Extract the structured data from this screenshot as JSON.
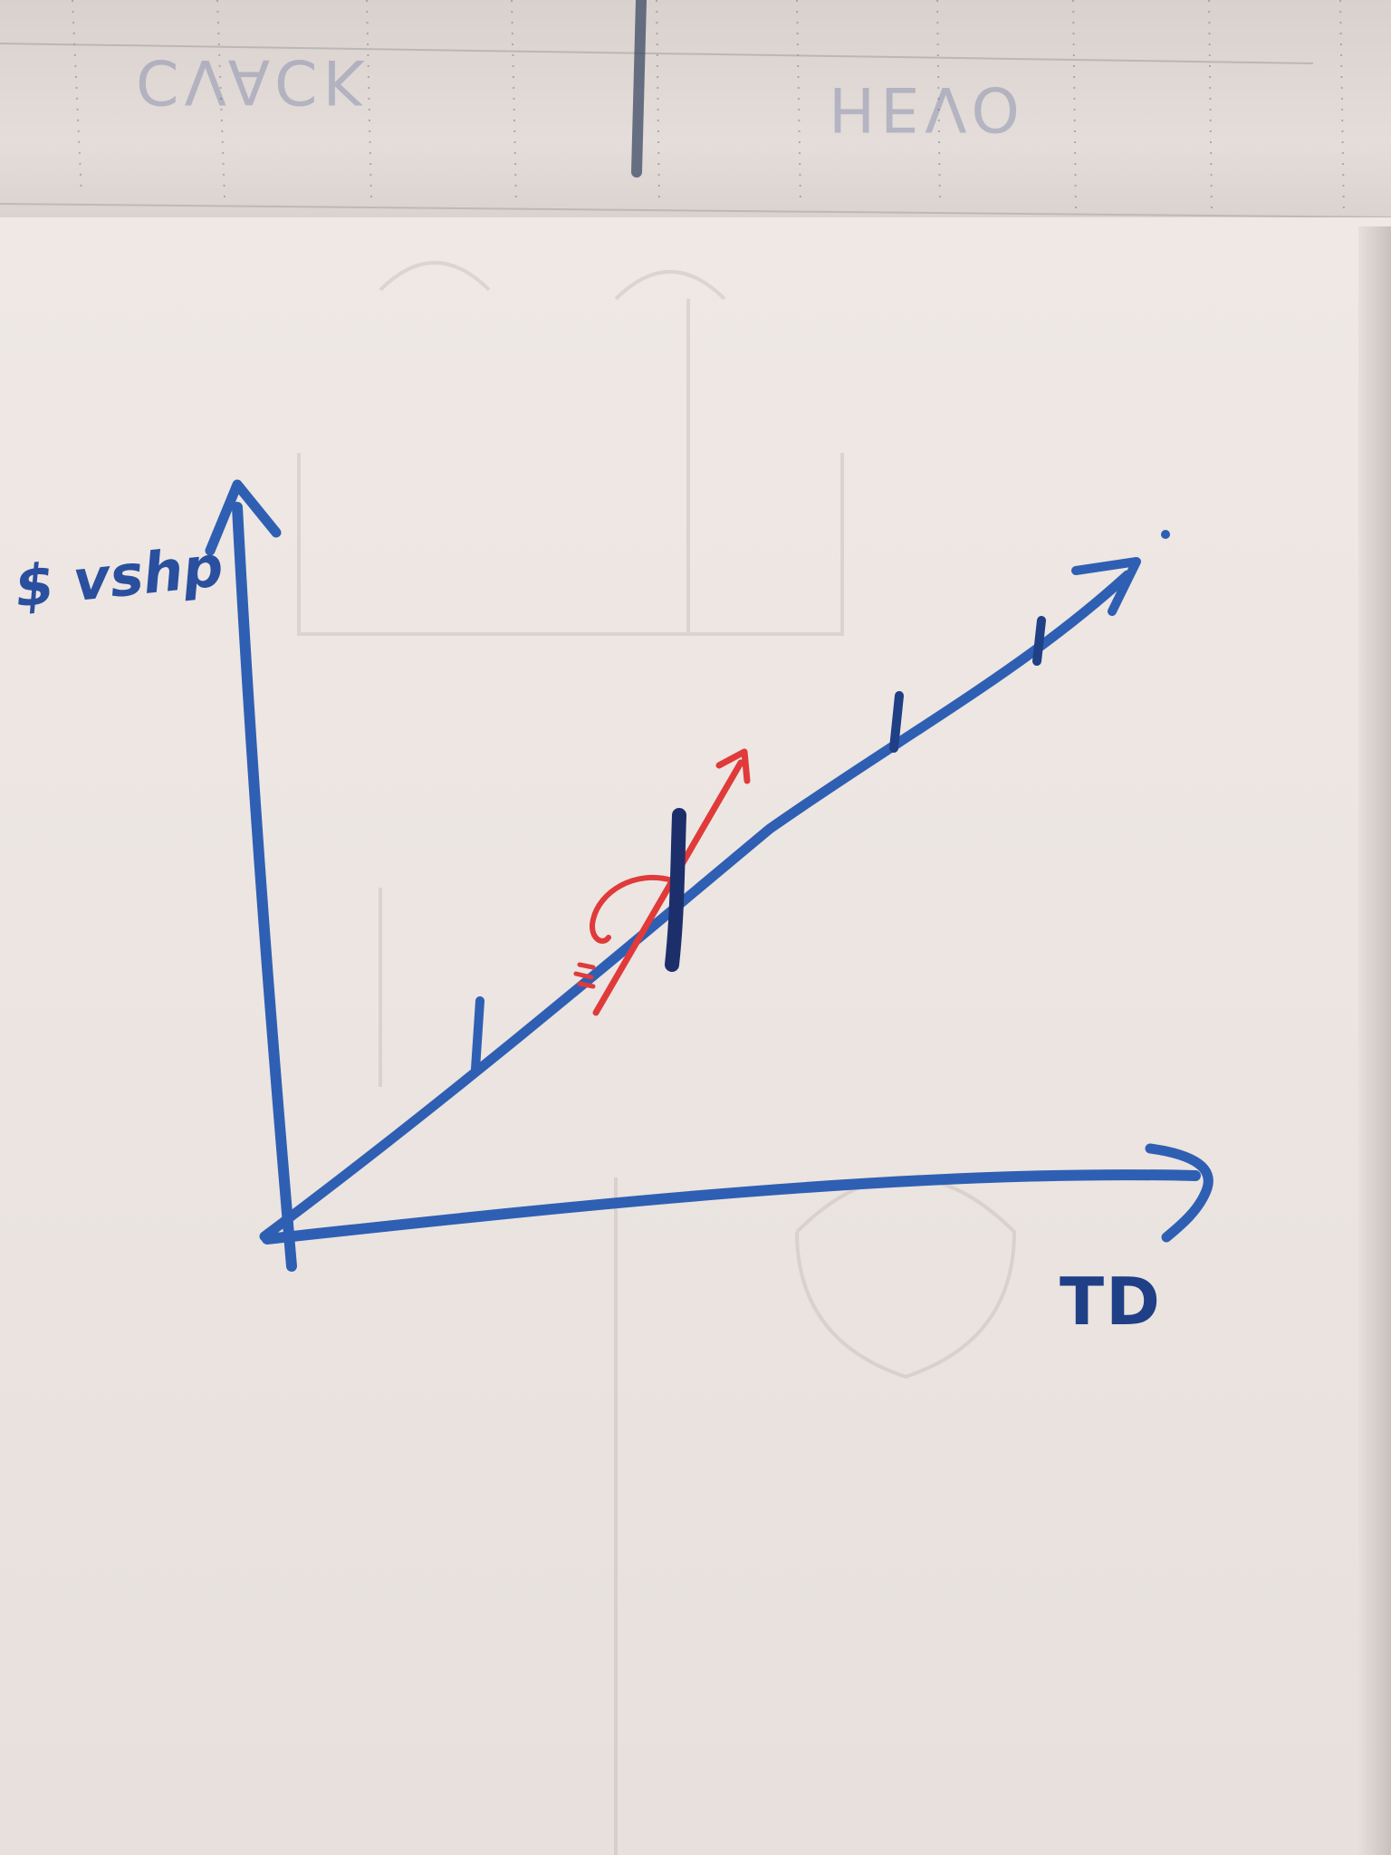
{
  "top_sheet": {
    "left_text": "CVACK",
    "right_text": "HEVO"
  },
  "sketch": {
    "y_axis_label": "$ vshp",
    "x_axis_label": "TD"
  },
  "colors": {
    "marker_blue": "#2f5fb3",
    "marker_dark": "#1c2f6b",
    "marker_red": "#e03a3a",
    "paper": "#ece5e1"
  }
}
